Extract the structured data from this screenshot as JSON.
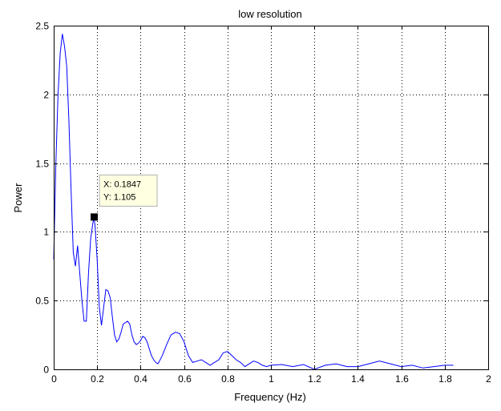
{
  "chart_data": {
    "type": "line",
    "title": "low resolution",
    "xlabel": "Frequency (Hz)",
    "ylabel": "Power",
    "xlim": [
      0,
      2
    ],
    "ylim": [
      0,
      2.5
    ],
    "grid": true,
    "xticks": [
      0,
      0.2,
      0.4,
      0.6,
      0.8,
      1,
      1.2,
      1.4,
      1.6,
      1.8,
      2
    ],
    "xtick_labels": [
      "0",
      "0.2",
      "0.4",
      "0.6",
      "0.8",
      "1",
      "1.2",
      "1.4",
      "1.6",
      "1.8",
      "2"
    ],
    "yticks": [
      0,
      0.5,
      1,
      1.5,
      2,
      2.5
    ],
    "ytick_labels": [
      "0",
      "0.5",
      "1",
      "1.5",
      "2",
      "2.5"
    ],
    "line_color": "#0000ff",
    "series": [
      {
        "x": [
          0,
          0.01,
          0.02,
          0.03,
          0.04,
          0.05,
          0.06,
          0.07,
          0.08,
          0.09,
          0.1,
          0.11,
          0.12,
          0.13,
          0.14,
          0.15,
          0.16,
          0.17,
          0.18,
          0.1847,
          0.19,
          0.2,
          0.21,
          0.22,
          0.23,
          0.24,
          0.25,
          0.26,
          0.27,
          0.28,
          0.29,
          0.3,
          0.31,
          0.32,
          0.33,
          0.34,
          0.35,
          0.36,
          0.37,
          0.38,
          0.39,
          0.4,
          0.41,
          0.42,
          0.43,
          0.44,
          0.45,
          0.46,
          0.47,
          0.48,
          0.5,
          0.52,
          0.54,
          0.56,
          0.58,
          0.6,
          0.62,
          0.64,
          0.66,
          0.68,
          0.7,
          0.72,
          0.74,
          0.76,
          0.78,
          0.8,
          0.82,
          0.84,
          0.86,
          0.88,
          0.9,
          0.92,
          0.94,
          0.96,
          0.98,
          1.0,
          1.05,
          1.1,
          1.15,
          1.2,
          1.25,
          1.3,
          1.35,
          1.4,
          1.45,
          1.5,
          1.55,
          1.6,
          1.65,
          1.7,
          1.75,
          1.8,
          1.84
        ],
        "y": [
          0.8,
          1.5,
          2.0,
          2.3,
          2.44,
          2.35,
          2.2,
          1.8,
          1.3,
          0.85,
          0.75,
          0.9,
          0.7,
          0.5,
          0.35,
          0.35,
          0.7,
          0.95,
          1.06,
          1.105,
          1.05,
          0.8,
          0.45,
          0.32,
          0.45,
          0.58,
          0.57,
          0.52,
          0.38,
          0.25,
          0.2,
          0.22,
          0.27,
          0.33,
          0.34,
          0.35,
          0.33,
          0.25,
          0.2,
          0.18,
          0.19,
          0.21,
          0.24,
          0.23,
          0.2,
          0.15,
          0.1,
          0.07,
          0.05,
          0.04,
          0.1,
          0.18,
          0.25,
          0.27,
          0.26,
          0.2,
          0.1,
          0.05,
          0.06,
          0.07,
          0.05,
          0.03,
          0.05,
          0.07,
          0.12,
          0.13,
          0.1,
          0.07,
          0.05,
          0.02,
          0.04,
          0.06,
          0.05,
          0.03,
          0.02,
          0.03,
          0.035,
          0.02,
          0.035,
          0.0,
          0.03,
          0.04,
          0.02,
          0.02,
          0.04,
          0.06,
          0.04,
          0.02,
          0.03,
          0.01,
          0.02,
          0.03,
          0.03
        ]
      }
    ],
    "datatip": {
      "x": 0.1847,
      "y": 1.105,
      "x_text": "X: 0.1847",
      "y_text": "Y: 1.105"
    }
  }
}
